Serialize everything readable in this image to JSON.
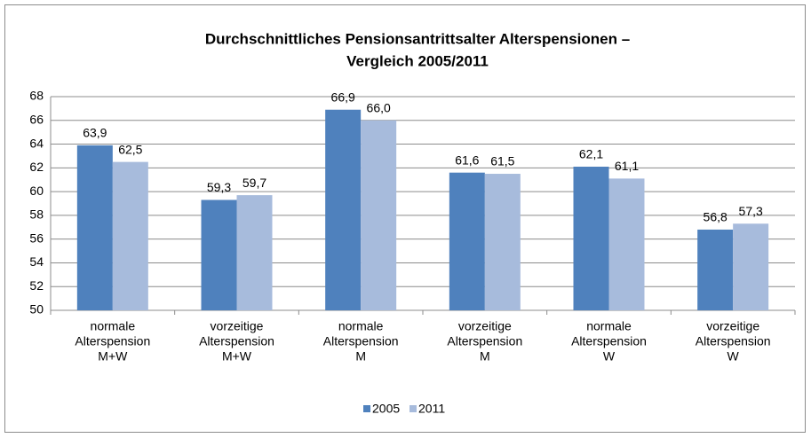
{
  "chart_data": {
    "type": "bar",
    "title": [
      "Durchschnittliches Pensionsantrittsalter Alterspensionen –",
      "Vergleich 2005/2011"
    ],
    "categories": [
      [
        "normale",
        "Alterspension",
        "M+W"
      ],
      [
        "vorzeitige",
        "Alterspension",
        "M+W"
      ],
      [
        "normale",
        "Alterspension",
        "M"
      ],
      [
        "vorzeitige",
        "Alterspension",
        "M"
      ],
      [
        "normale",
        "Alterspension",
        "W"
      ],
      [
        "vorzeitige",
        "Alterspension",
        "W"
      ]
    ],
    "series": [
      {
        "name": "2005",
        "color": "#4f81bd",
        "values": [
          63.9,
          59.3,
          66.9,
          61.6,
          62.1,
          56.8
        ],
        "value_labels": [
          "63,9",
          "59,3",
          "66,9",
          "61,6",
          "62,1",
          "56,8"
        ]
      },
      {
        "name": "2011",
        "color": "#a7bbdc",
        "values": [
          62.5,
          59.7,
          66.0,
          61.5,
          61.1,
          57.3
        ],
        "value_labels": [
          "62,5",
          "59,7",
          "66,0",
          "61,5",
          "61,1",
          "57,3"
        ]
      }
    ],
    "ylim": [
      50,
      68
    ],
    "yticks": [
      50,
      52,
      54,
      56,
      58,
      60,
      62,
      64,
      66,
      68
    ],
    "grid": true,
    "legend": "bottom"
  }
}
